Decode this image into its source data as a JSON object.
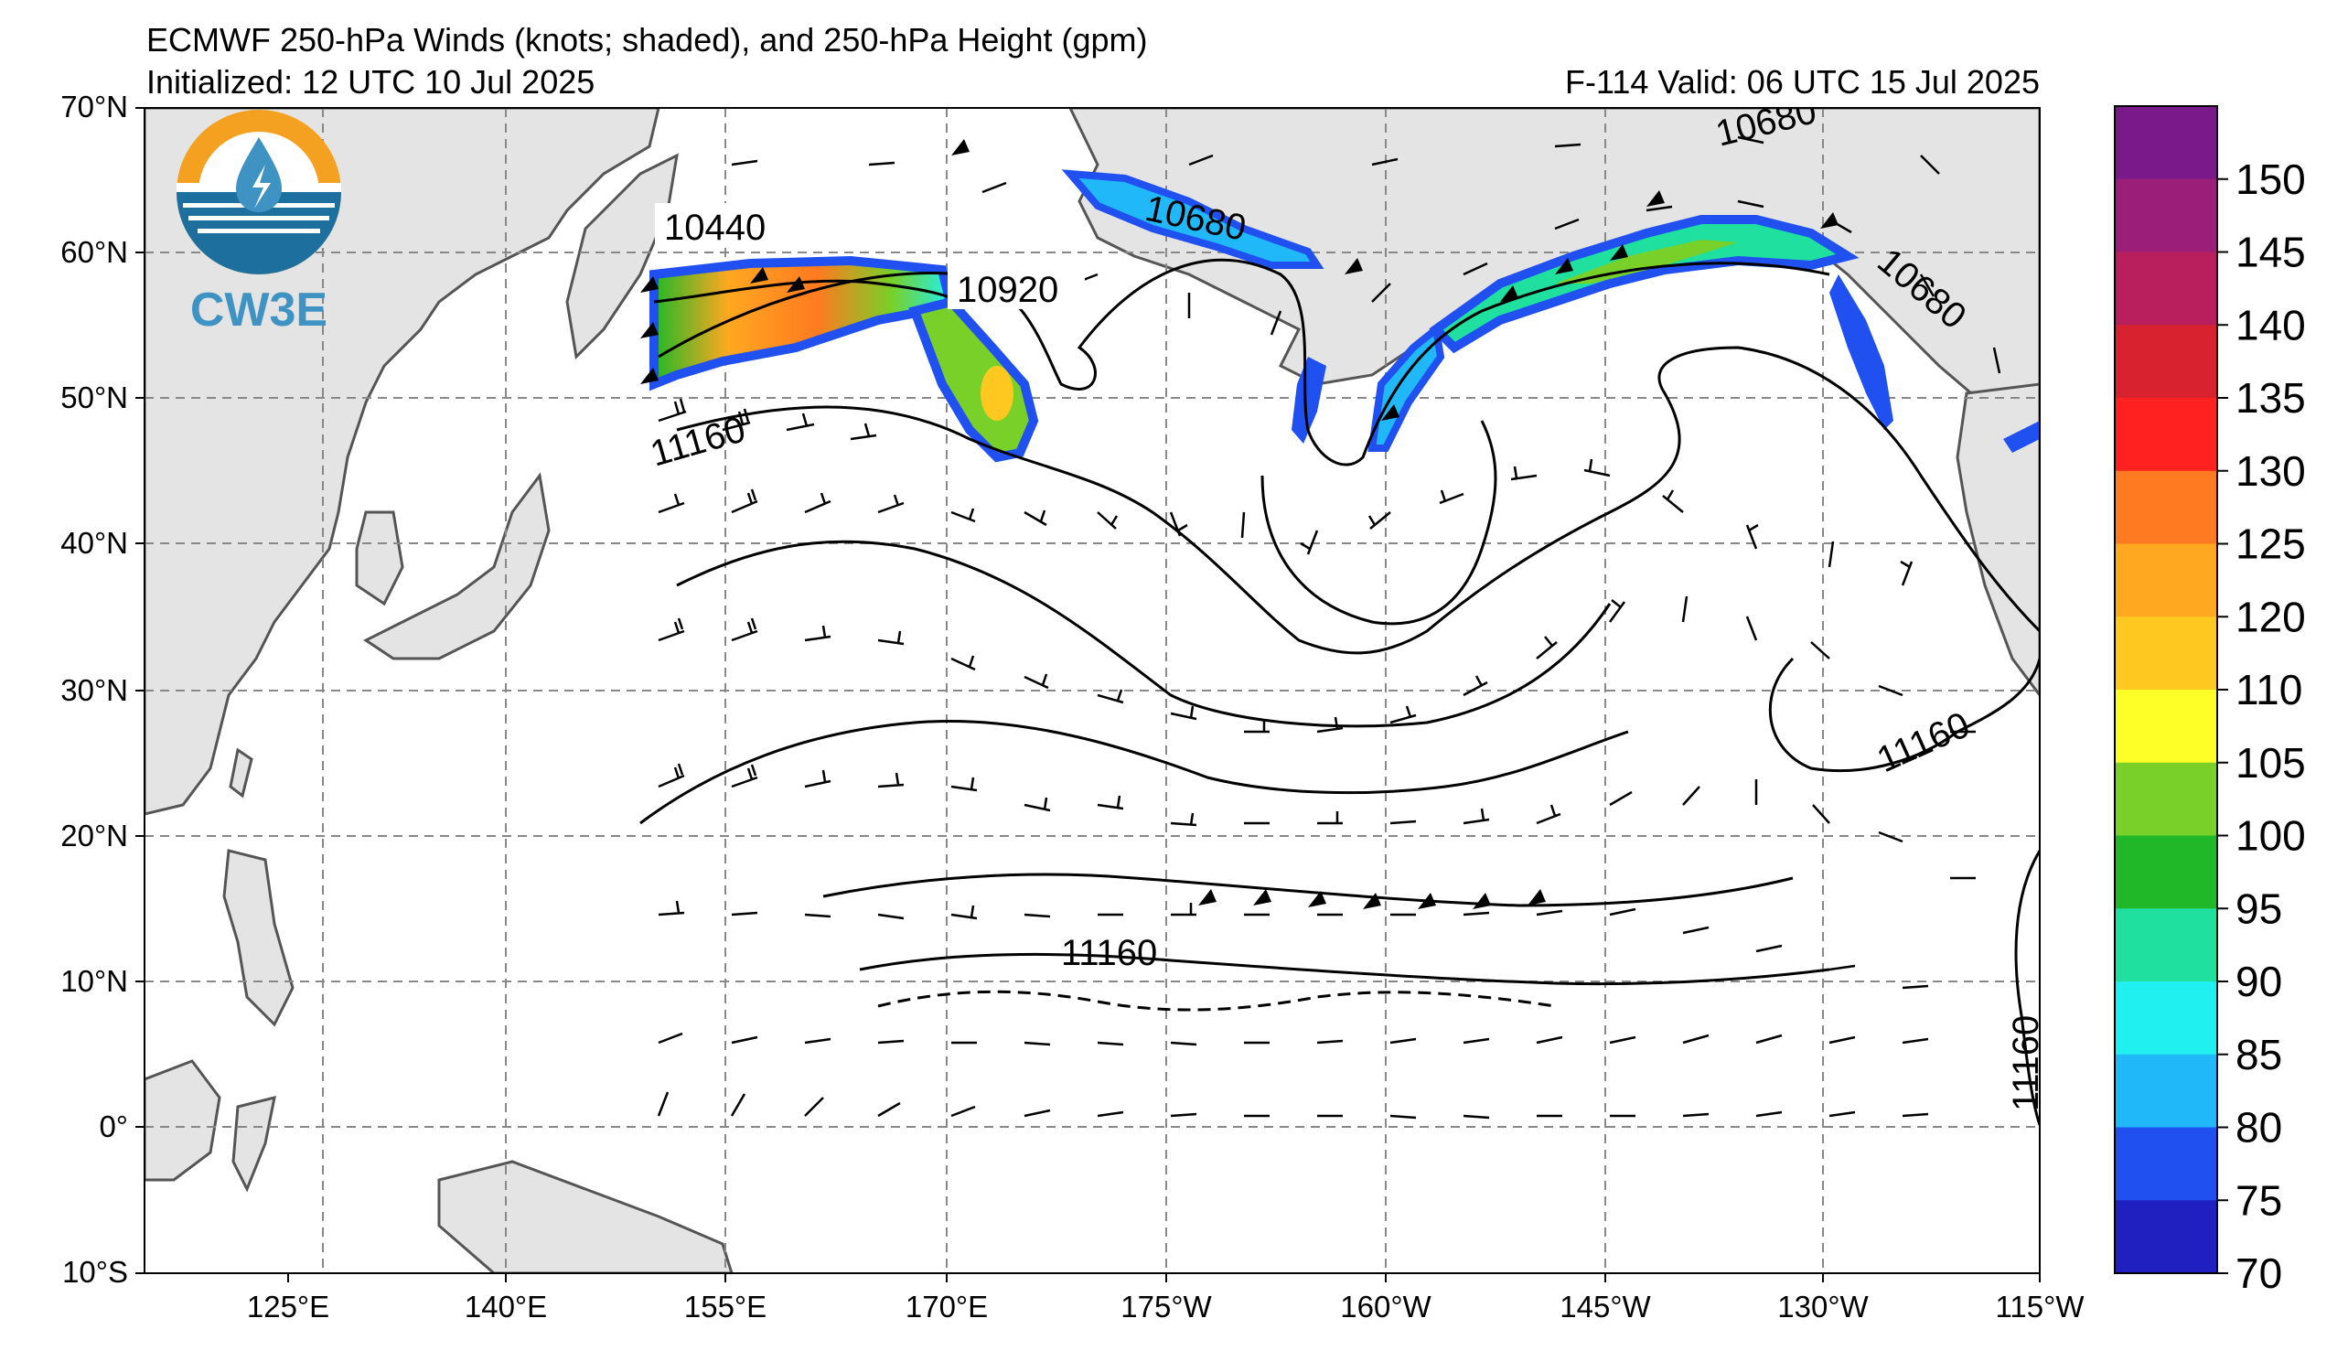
{
  "header": {
    "title": "ECMWF 250-hPa Winds (knots; shaded), and 250-hPa Height (gpm)",
    "initialized": "Initialized: 12 UTC 10 Jul 2025",
    "valid": "F-114  Valid: 06 UTC 15 Jul 2025"
  },
  "logo": {
    "text": "CW3E",
    "icon": "water-drop-logo-icon"
  },
  "map": {
    "lat_labels": [
      "70°N",
      "60°N",
      "50°N",
      "40°N",
      "30°N",
      "20°N",
      "10°N",
      "0°",
      "10°S"
    ],
    "lon_labels": [
      "125°E",
      "140°E",
      "155°E",
      "170°E",
      "175°W",
      "160°W",
      "145°W",
      "130°W",
      "115°W"
    ],
    "contour_labels": [
      "10440",
      "10920",
      "11160",
      "10680",
      "10680",
      "10680",
      "11160",
      "11160",
      "11160"
    ],
    "land_color": "#e4e4e4",
    "grid_style": "dashed"
  },
  "colorbar": {
    "ticks": [
      "150",
      "145",
      "140",
      "135",
      "130",
      "125",
      "120",
      "110",
      "105",
      "100",
      "95",
      "90",
      "85",
      "80",
      "75",
      "70"
    ],
    "colors": [
      "#7a1a8a",
      "#9b1f78",
      "#b81f5c",
      "#d82230",
      "#ff2020",
      "#ff7a20",
      "#ffa820",
      "#ffc820",
      "#ffff28",
      "#78d028",
      "#20b828",
      "#20e0a0",
      "#20f0f0",
      "#20b8f8",
      "#2050f0",
      "#2020c0"
    ]
  }
}
